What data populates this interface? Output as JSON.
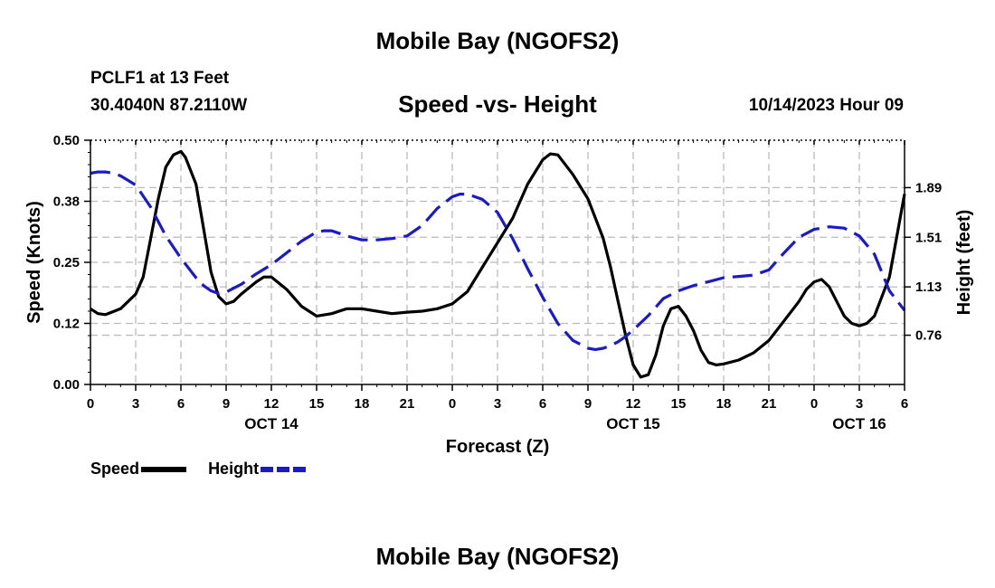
{
  "page": {
    "title": "Mobile Bay (NGOFS2)",
    "title_bottom": "Mobile Bay (NGOFS2)",
    "station_line": "PCLF1 at 13 Feet",
    "coords_line": "30.4040N  87.2110W",
    "datetime_line": "10/14/2023 Hour 09"
  },
  "chart_data": {
    "type": "line",
    "title": "Speed -vs- Height",
    "xlabel": "Forecast (Z)",
    "ylabel": "Speed (Knots)",
    "y2label": "Height (feet)",
    "xlim": [
      0,
      54
    ],
    "ylim": [
      0,
      0.5
    ],
    "y2lim": [
      0.383,
      2.253
    ],
    "x_ticks": [
      0,
      3,
      6,
      9,
      12,
      15,
      18,
      21,
      24,
      27,
      30,
      33,
      36,
      39,
      42,
      45,
      48,
      51,
      54
    ],
    "x_tick_labels": [
      "0",
      "3",
      "6",
      "9",
      "12",
      "15",
      "18",
      "21",
      "0",
      "3",
      "6",
      "9",
      "12",
      "15",
      "18",
      "21",
      "0",
      "3",
      "6"
    ],
    "date_labels": [
      {
        "x": 12,
        "text": "OCT 14"
      },
      {
        "x": 36,
        "text": "OCT 15"
      },
      {
        "x": 51,
        "text": "OCT 16"
      }
    ],
    "y_ticks": [
      0.0,
      0.125,
      0.25,
      0.375,
      0.5
    ],
    "y_tick_labels": [
      "0.00",
      "0.12",
      "0.25",
      "0.38",
      "0.50"
    ],
    "y2_ticks": [
      0.76,
      1.13,
      1.51,
      1.89
    ],
    "y2_tick_labels": [
      "0.76",
      "1.13",
      "1.51",
      "1.89"
    ],
    "grid": true,
    "legend": [
      {
        "name": "Speed",
        "color": "#000000",
        "dash": "solid"
      },
      {
        "name": "Height",
        "color": "#1a1ac8",
        "dash": "dashed"
      }
    ],
    "series": [
      {
        "name": "Speed",
        "axis": "left",
        "color": "#000000",
        "x": [
          0,
          0.5,
          1,
          2,
          3,
          3.5,
          4,
          4.5,
          5,
          5.5,
          6,
          6.3,
          7,
          7.5,
          8,
          8.5,
          9,
          9.5,
          10,
          11,
          11.5,
          12,
          13,
          14,
          15,
          16,
          17,
          18,
          19,
          20,
          21,
          22,
          23,
          24,
          25,
          26,
          27,
          28,
          29,
          30,
          30.5,
          31,
          32,
          33,
          34,
          34.5,
          35,
          35.5,
          36,
          36.5,
          37,
          37.5,
          38,
          38.5,
          39,
          39.5,
          40,
          40.5,
          41,
          41.5,
          42,
          43,
          44,
          45,
          46,
          47,
          47.5,
          48,
          48.5,
          49,
          49.5,
          50,
          50.5,
          51,
          51.5,
          52,
          53,
          54
        ],
        "y": [
          0.155,
          0.145,
          0.143,
          0.155,
          0.185,
          0.22,
          0.3,
          0.38,
          0.445,
          0.47,
          0.477,
          0.465,
          0.41,
          0.32,
          0.23,
          0.18,
          0.165,
          0.17,
          0.185,
          0.21,
          0.22,
          0.22,
          0.195,
          0.16,
          0.14,
          0.145,
          0.155,
          0.155,
          0.15,
          0.145,
          0.148,
          0.15,
          0.155,
          0.165,
          0.19,
          0.24,
          0.29,
          0.34,
          0.41,
          0.46,
          0.472,
          0.47,
          0.43,
          0.38,
          0.3,
          0.24,
          0.17,
          0.1,
          0.04,
          0.015,
          0.02,
          0.06,
          0.12,
          0.155,
          0.16,
          0.14,
          0.11,
          0.07,
          0.045,
          0.04,
          0.042,
          0.05,
          0.065,
          0.09,
          0.13,
          0.17,
          0.195,
          0.21,
          0.215,
          0.2,
          0.17,
          0.14,
          0.125,
          0.12,
          0.125,
          0.14,
          0.22,
          0.39
        ]
      },
      {
        "name": "Height",
        "axis": "right",
        "color": "#1a1ac8",
        "x": [
          0,
          0.5,
          1,
          1.5,
          2,
          3,
          4,
          5,
          6,
          7,
          7.5,
          8,
          8.5,
          9,
          9.5,
          10,
          11,
          12,
          13,
          14,
          15,
          15.5,
          16,
          17,
          18,
          19,
          20,
          21,
          22,
          23,
          24,
          24.5,
          25,
          26,
          27,
          28,
          29,
          30,
          31,
          32,
          33,
          33.5,
          34,
          34.5,
          35,
          35.5,
          36,
          37,
          38,
          39,
          40,
          41,
          42,
          43,
          44,
          45,
          46,
          47,
          48,
          49,
          50,
          51,
          52,
          53,
          54
        ],
        "y": [
          2.0,
          2.01,
          2.01,
          2.0,
          1.98,
          1.91,
          1.74,
          1.52,
          1.35,
          1.2,
          1.14,
          1.1,
          1.08,
          1.09,
          1.12,
          1.15,
          1.23,
          1.3,
          1.39,
          1.48,
          1.55,
          1.56,
          1.56,
          1.52,
          1.49,
          1.49,
          1.5,
          1.52,
          1.6,
          1.73,
          1.82,
          1.84,
          1.84,
          1.8,
          1.7,
          1.5,
          1.27,
          1.05,
          0.85,
          0.72,
          0.66,
          0.65,
          0.66,
          0.68,
          0.71,
          0.75,
          0.8,
          0.91,
          1.04,
          1.1,
          1.14,
          1.17,
          1.2,
          1.21,
          1.22,
          1.26,
          1.39,
          1.51,
          1.57,
          1.59,
          1.58,
          1.52,
          1.38,
          1.1,
          0.95
        ]
      }
    ]
  }
}
